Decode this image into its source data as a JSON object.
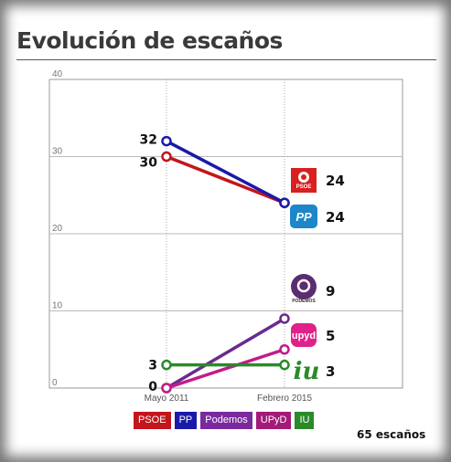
{
  "page": {
    "title": "Evolución de escaños",
    "total_label": "65 escaños"
  },
  "chart_data": {
    "type": "line",
    "title": "Evolución de escaños",
    "x": [
      "Mayo 2011",
      "Febrero 2015"
    ],
    "ylim": [
      0,
      40
    ],
    "y_ticks": [
      "0",
      "10",
      "20",
      "30",
      "40"
    ],
    "grid": true,
    "series": [
      {
        "name": "PSOE",
        "values": [
          30,
          24
        ],
        "color": "#c4151c",
        "labels": [
          "30",
          "24"
        ]
      },
      {
        "name": "PP",
        "values": [
          32,
          24
        ],
        "color": "#1a1aa8",
        "labels": [
          "32",
          "24"
        ]
      },
      {
        "name": "Podemos",
        "values": [
          0,
          9
        ],
        "color": "#6a2a8e",
        "labels": [
          "",
          "9"
        ]
      },
      {
        "name": "UPyD",
        "values": [
          0,
          5
        ],
        "color": "#c21a8c",
        "labels": [
          "0",
          "5"
        ]
      },
      {
        "name": "IU",
        "values": [
          3,
          3
        ],
        "color": "#2a8a2a",
        "labels": [
          "3",
          "3"
        ]
      }
    ],
    "logos": [
      {
        "party": "PSOE",
        "icon": "psoe-logo-icon",
        "text": "PSOE",
        "color": "#d8201f"
      },
      {
        "party": "PP",
        "icon": "pp-logo-icon",
        "text": "PP",
        "color": "#1c87c9"
      },
      {
        "party": "Podemos",
        "icon": "podemos-logo-icon",
        "text": "PODEMOS",
        "color": "#5b2c6f"
      },
      {
        "party": "UPyD",
        "icon": "upyd-logo-icon",
        "text": "upyd",
        "color": "#e0218a"
      },
      {
        "party": "IU",
        "icon": "iu-logo-icon",
        "text": "iu",
        "color": "#2b8a2b"
      }
    ],
    "legend": [
      {
        "label": "PSOE",
        "color": "#c4151c"
      },
      {
        "label": "PP",
        "color": "#1a1aa8"
      },
      {
        "label": "Podemos",
        "color": "#7a2a9e"
      },
      {
        "label": "UPyD",
        "color": "#a31a78"
      },
      {
        "label": "IU",
        "color": "#2a8a2a"
      }
    ]
  }
}
